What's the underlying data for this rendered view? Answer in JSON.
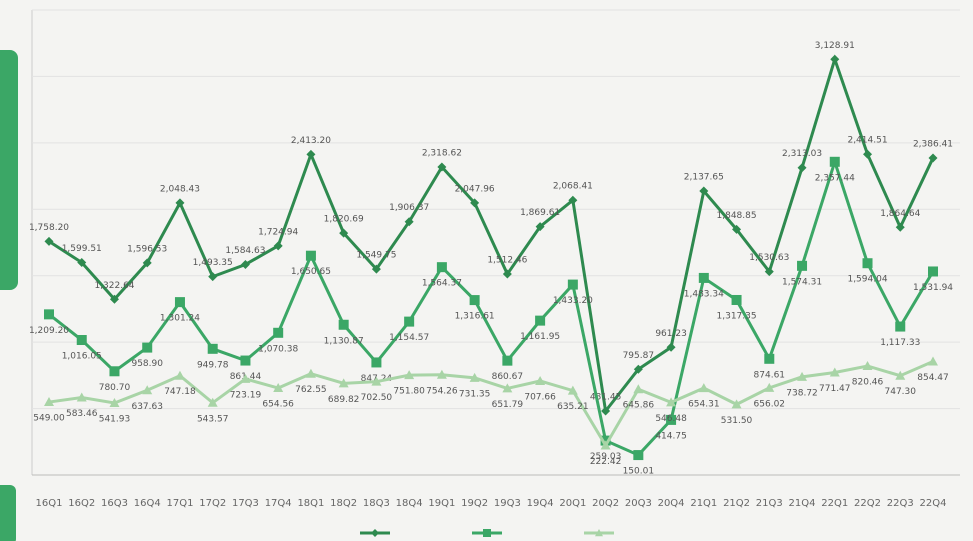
{
  "chart_data": {
    "type": "line",
    "categories": [
      "16Q1",
      "16Q2",
      "16Q3",
      "16Q4",
      "17Q1",
      "17Q2",
      "17Q3",
      "17Q4",
      "18Q1",
      "18Q2",
      "18Q3",
      "18Q4",
      "19Q1",
      "19Q2",
      "19Q3",
      "19Q4",
      "20Q1",
      "20Q2",
      "20Q3",
      "20Q4",
      "21Q1",
      "21Q2",
      "21Q3",
      "21Q4",
      "22Q1",
      "22Q2",
      "22Q3",
      "22Q4"
    ],
    "ylim": [
      0,
      3500
    ],
    "yticks": [
      0,
      500,
      1000,
      1500,
      2000,
      2500,
      3000,
      3500
    ],
    "grid": true,
    "series": [
      {
        "color": "#2e8a4f",
        "marker": "diamond",
        "values": [
          1758.2,
          1599.51,
          1322.64,
          1596.53,
          2048.43,
          1493.35,
          1584.63,
          1724.94,
          2413.2,
          1820.69,
          1549.75,
          1906.37,
          2318.62,
          2047.96,
          1512.46,
          1869.61,
          2068.41,
          481.45,
          795.87,
          961.23,
          2137.65,
          1848.85,
          1530.63,
          2313.03,
          3128.91,
          2414.51,
          1864.64,
          2386.41
        ],
        "value_labels": [
          "1,758.20",
          "1,599.51",
          "1,322.64",
          "1,596.53",
          "2,048.43",
          "1,493.35",
          "1,584.63",
          "1,724.94",
          "2,413.20",
          "1,820.69",
          "1,549.75",
          "1,906.37",
          "2,318.62",
          "2,047.96",
          "1,512.46",
          "1,869.61",
          "2,068.41",
          "481.45",
          "795.87",
          "961.23",
          "2,137.65",
          "1,848.85",
          "1,530.63",
          "2,313.03",
          "3,128.91",
          "2,414.51",
          "1,864.64",
          "2,386.41"
        ]
      },
      {
        "color": "#3ba766",
        "marker": "square",
        "values": [
          1209.2,
          1016.05,
          780.7,
          958.9,
          1301.24,
          949.78,
          861.44,
          1070.38,
          1650.65,
          1130.87,
          847.24,
          1154.57,
          1564.37,
          1316.61,
          860.67,
          1161.95,
          1433.2,
          259.03,
          150.01,
          414.75,
          1483.34,
          1317.35,
          874.61,
          1574.31,
          2357.44,
          1594.04,
          1117.33,
          1531.94
        ],
        "value_labels": [
          "1,209.20",
          "1,016.05",
          "780.70",
          "958.90",
          "1,301.24",
          "949.78",
          "861.44",
          "1,070.38",
          "1,650.65",
          "1,130.87",
          "847.24",
          "1,154.57",
          "1,564.37",
          "1,316.61",
          "860.67",
          "1,161.95",
          "1,433.20",
          "259.03",
          "150.01",
          "414.75",
          "1,483.34",
          "1,317.35",
          "874.61",
          "1,574.31",
          "2,357.44",
          "1,594.04",
          "1,117.33",
          "1,531.94"
        ]
      },
      {
        "color": "#a8d4a6",
        "marker": "triangle",
        "values": [
          549.0,
          583.46,
          541.93,
          637.63,
          747.18,
          543.57,
          723.19,
          654.56,
          762.55,
          689.82,
          702.5,
          751.8,
          754.26,
          731.35,
          651.79,
          707.66,
          635.21,
          222.42,
          645.86,
          546.48,
          654.31,
          531.5,
          656.02,
          738.72,
          771.47,
          820.46,
          747.3,
          854.47
        ],
        "value_labels": [
          "549.00",
          "583.46",
          "541.93",
          "637.63",
          "747.18",
          "543.57",
          "723.19",
          "654.56",
          "762.55",
          "689.82",
          "702.50",
          "751.80",
          "754.26",
          "731.35",
          "651.79",
          "707.66",
          "635.21",
          "222.42",
          "645.86",
          "546.48",
          "654.31",
          "531.50",
          "656.02",
          "738.72",
          "771.47",
          "820.46",
          "747.30",
          "854.47"
        ]
      }
    ]
  }
}
